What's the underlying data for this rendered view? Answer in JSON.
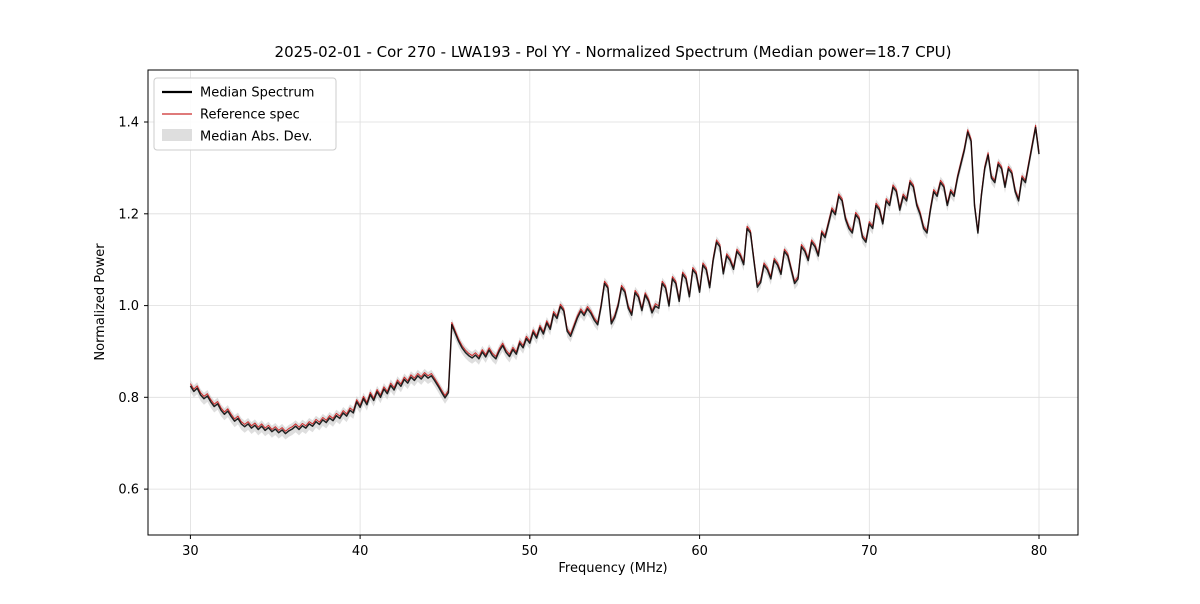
{
  "figure": {
    "title": "2025-02-01 - Cor 270 - LWA193 - Pol YY - Normalized Spectrum (Median power=18.7 CPU)",
    "xlabel": "Frequency (MHz)",
    "ylabel": "Normalized Power"
  },
  "chart_data": {
    "type": "line",
    "title": "2025-02-01 - Cor 270 - LWA193 - Pol YY - Normalized Spectrum (Median power=18.7 CPU)",
    "xlabel": "Frequency (MHz)",
    "ylabel": "Normalized Power",
    "xlim": [
      27.5,
      82.3
    ],
    "ylim": [
      0.5,
      1.5133
    ],
    "xticks": [
      30,
      40,
      50,
      60,
      70,
      80
    ],
    "yticks": [
      0.6,
      0.8,
      1.0,
      1.2,
      1.4
    ],
    "grid": true,
    "legend_position": "upper left",
    "x_start": 30.0,
    "x_step": 0.2,
    "series": [
      {
        "name": "Median Spectrum",
        "color": "#000000",
        "linewidth": 1.5
      },
      {
        "name": "Reference spec",
        "color": "#cc2b2b",
        "linewidth": 1.0,
        "offset_from_median": 0.005
      }
    ],
    "band": {
      "name": "Median Abs. Dev.",
      "color": "#c8c8c8",
      "halfwidth": 0.013,
      "alpha": 0.6
    },
    "y_median": [
      0.825,
      0.813,
      0.82,
      0.805,
      0.797,
      0.803,
      0.79,
      0.78,
      0.786,
      0.772,
      0.763,
      0.77,
      0.758,
      0.748,
      0.754,
      0.742,
      0.736,
      0.742,
      0.733,
      0.739,
      0.73,
      0.737,
      0.728,
      0.734,
      0.725,
      0.731,
      0.723,
      0.729,
      0.721,
      0.727,
      0.731,
      0.737,
      0.73,
      0.738,
      0.733,
      0.742,
      0.737,
      0.747,
      0.741,
      0.751,
      0.745,
      0.755,
      0.749,
      0.76,
      0.754,
      0.766,
      0.759,
      0.772,
      0.766,
      0.79,
      0.778,
      0.797,
      0.784,
      0.806,
      0.793,
      0.812,
      0.8,
      0.818,
      0.808,
      0.826,
      0.816,
      0.833,
      0.824,
      0.839,
      0.831,
      0.844,
      0.837,
      0.847,
      0.84,
      0.849,
      0.842,
      0.847,
      0.836,
      0.824,
      0.811,
      0.799,
      0.81,
      0.958,
      0.94,
      0.922,
      0.908,
      0.898,
      0.891,
      0.886,
      0.892,
      0.884,
      0.899,
      0.888,
      0.903,
      0.891,
      0.884,
      0.901,
      0.913,
      0.898,
      0.889,
      0.904,
      0.894,
      0.918,
      0.908,
      0.928,
      0.918,
      0.942,
      0.929,
      0.952,
      0.938,
      0.962,
      0.948,
      0.982,
      0.972,
      0.998,
      0.988,
      0.944,
      0.933,
      0.953,
      0.973,
      0.988,
      0.978,
      0.993,
      0.983,
      0.968,
      0.958,
      0.998,
      1.048,
      1.038,
      0.96,
      0.974,
      0.999,
      1.039,
      1.029,
      0.994,
      0.979,
      1.028,
      1.018,
      0.989,
      1.023,
      1.009,
      0.984,
      0.999,
      0.994,
      1.048,
      1.038,
      0.999,
      1.058,
      1.048,
      1.009,
      1.068,
      1.058,
      1.019,
      1.078,
      1.068,
      1.029,
      1.088,
      1.078,
      1.039,
      1.098,
      1.138,
      1.128,
      1.069,
      1.108,
      1.098,
      1.079,
      1.118,
      1.108,
      1.089,
      1.168,
      1.158,
      1.098,
      1.04,
      1.05,
      1.088,
      1.078,
      1.058,
      1.098,
      1.088,
      1.068,
      1.118,
      1.108,
      1.078,
      1.048,
      1.058,
      1.128,
      1.118,
      1.098,
      1.138,
      1.128,
      1.108,
      1.158,
      1.148,
      1.178,
      1.208,
      1.198,
      1.238,
      1.228,
      1.188,
      1.168,
      1.158,
      1.198,
      1.188,
      1.148,
      1.138,
      1.178,
      1.168,
      1.218,
      1.208,
      1.178,
      1.228,
      1.218,
      1.258,
      1.248,
      1.208,
      1.238,
      1.228,
      1.268,
      1.258,
      1.218,
      1.198,
      1.168,
      1.158,
      1.208,
      1.248,
      1.238,
      1.268,
      1.258,
      1.218,
      1.248,
      1.238,
      1.278,
      1.308,
      1.338,
      1.378,
      1.358,
      1.218,
      1.158,
      1.238,
      1.298,
      1.328,
      1.278,
      1.268,
      1.308,
      1.298,
      1.258,
      1.298,
      1.288,
      1.248,
      1.228,
      1.278,
      1.268,
      1.308,
      1.348,
      1.388,
      1.33
    ]
  }
}
